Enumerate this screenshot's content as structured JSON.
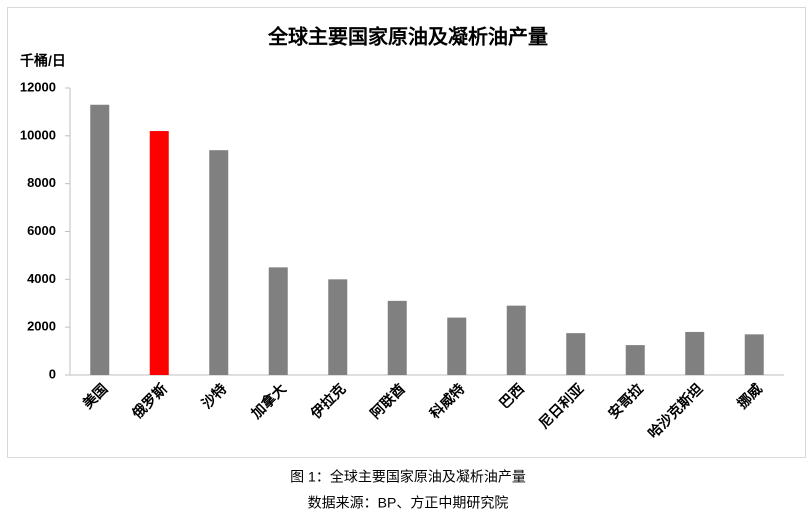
{
  "chart_data": {
    "type": "bar",
    "title": "全球主要国家原油及凝析油产量",
    "y_label": "千桶/日",
    "categories": [
      "美国",
      "俄罗斯",
      "沙特",
      "加拿大",
      "伊拉克",
      "阿联酋",
      "科威特",
      "巴西",
      "尼日利亚",
      "安哥拉",
      "哈沙克斯坦",
      "挪威"
    ],
    "values": [
      11300,
      10200,
      9400,
      4500,
      4000,
      3100,
      2400,
      2900,
      1750,
      1250,
      1800,
      1700
    ],
    "colors": [
      "#808080",
      "#ff0000",
      "#808080",
      "#808080",
      "#808080",
      "#808080",
      "#808080",
      "#808080",
      "#808080",
      "#808080",
      "#808080",
      "#808080"
    ],
    "ylim": [
      0,
      12000
    ],
    "yticks": [
      0,
      2000,
      4000,
      6000,
      8000,
      10000,
      12000
    ],
    "grid": false
  },
  "caption": {
    "figure": "图 1：全球主要国家原油及凝析油产量",
    "source": "数据来源：BP、方正中期研究院"
  }
}
